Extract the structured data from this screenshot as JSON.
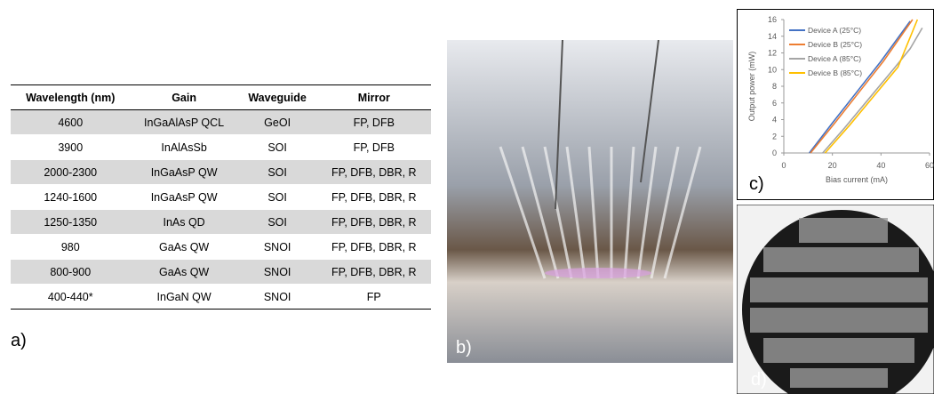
{
  "table": {
    "header": [
      "Wavelength (nm)",
      "Gain",
      "Waveguide",
      "Mirror"
    ],
    "rows": [
      [
        "4600",
        "InGaAlAsP QCL",
        "GeOI",
        "FP, DFB"
      ],
      [
        "3900",
        "InAlAsSb",
        "SOI",
        "FP, DFB"
      ],
      [
        "2000-2300",
        "InGaAsP QW",
        "SOI",
        "FP, DFB, DBR, R"
      ],
      [
        "1240-1600",
        "InGaAsP QW",
        "SOI",
        "FP, DFB, DBR, R"
      ],
      [
        "1250-1350",
        "InAs QD",
        "SOI",
        "FP, DFB, DBR, R"
      ],
      [
        "980",
        "GaAs QW",
        "SNOI",
        "FP, DFB, DBR, R"
      ],
      [
        "800-900",
        "GaAs QW",
        "SNOI",
        "FP, DFB, DBR, R"
      ],
      [
        "400-440*",
        "InGaN QW",
        "SNOI",
        "FP"
      ]
    ]
  },
  "panel_labels": [
    "a)",
    "b)",
    "c)",
    "d)"
  ],
  "chart_data": {
    "type": "line",
    "x_label": "Bias current (mA)",
    "y_label": "Output power (mW)",
    "xlim": [
      0,
      60
    ],
    "xticks": [
      0,
      20,
      40,
      60
    ],
    "ylim": [
      0,
      16
    ],
    "yticks": [
      0,
      2,
      4,
      6,
      8,
      10,
      12,
      14,
      16
    ],
    "legend": "upper-left",
    "series": [
      {
        "name": "Device A (25°C)",
        "color": "#4472c4",
        "x": [
          10.5,
          20,
          30,
          40,
          52
        ],
        "values": [
          0,
          3.6,
          7.3,
          11,
          15.8
        ]
      },
      {
        "name": "Device B (25°C)",
        "color": "#ed7d31",
        "x": [
          11,
          21,
          31,
          41,
          53
        ],
        "values": [
          0,
          3.6,
          7.3,
          11,
          16
        ]
      },
      {
        "name": "Device A (85°C)",
        "color": "#a5a5a5",
        "x": [
          16,
          25,
          35,
          45,
          52,
          57
        ],
        "values": [
          0,
          3,
          6.5,
          10,
          12.5,
          15
        ]
      },
      {
        "name": "Device B (85°C)",
        "color": "#ffc000",
        "x": [
          17,
          27,
          37,
          47,
          55
        ],
        "values": [
          0,
          3.3,
          6.8,
          10.3,
          16
        ]
      }
    ]
  }
}
